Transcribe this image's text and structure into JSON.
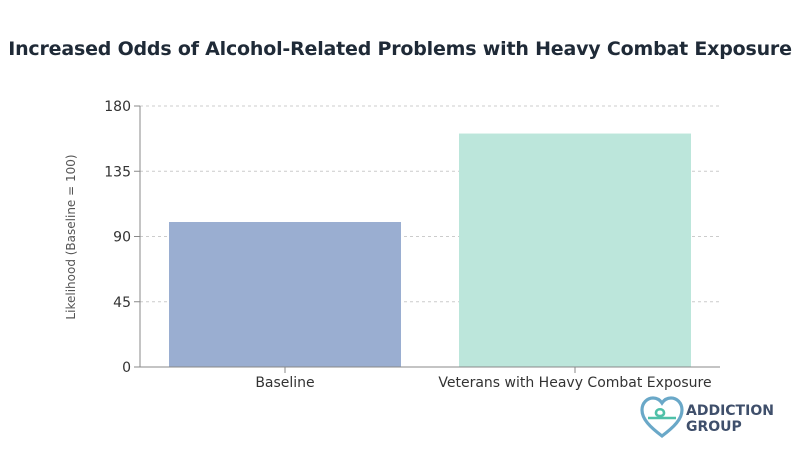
{
  "chart_data": {
    "type": "bar",
    "title": "Increased Odds of Alcohol-Related Problems with Heavy Combat Exposure",
    "xlabel": "",
    "ylabel": "Likelihood (Baseline = 100)",
    "categories": [
      "Baseline",
      "Veterans with Heavy Combat Exposure"
    ],
    "values": [
      100,
      161
    ],
    "ylim": [
      0,
      180
    ],
    "yticks": [
      0,
      45,
      90,
      135,
      180
    ],
    "bar_colors": [
      "#9aaed1",
      "#bce6db"
    ],
    "grid": "horizontal dashed",
    "legend": "none"
  },
  "logo": {
    "line1": "ADDICTION",
    "line2": "GROUP"
  }
}
